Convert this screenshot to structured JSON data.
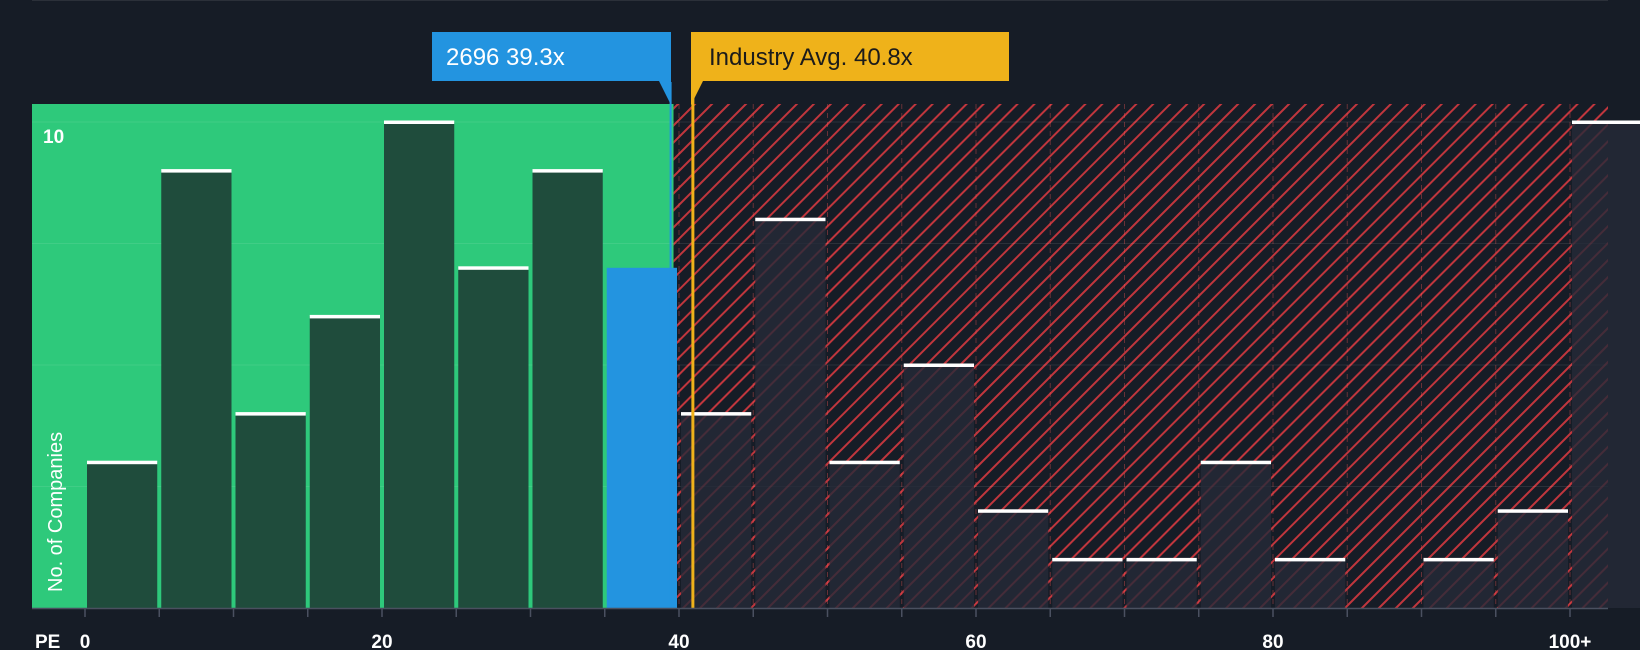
{
  "chart_data": {
    "type": "bar",
    "title": "",
    "xlabel": "PE",
    "ylabel": "No. of Companies",
    "x_ticks": [
      "0",
      "20",
      "40",
      "60",
      "80",
      "100+"
    ],
    "y_ticks": [
      "10"
    ],
    "ylim": [
      0,
      10
    ],
    "bin_width": 5,
    "categories": [
      "0-5",
      "5-10",
      "10-15",
      "15-20",
      "20-25",
      "25-30",
      "30-35",
      "35-40",
      "40-45",
      "45-50",
      "50-55",
      "55-60",
      "60-65",
      "65-70",
      "70-75",
      "75-80",
      "80-85",
      "85-90",
      "90-95",
      "95-100",
      "100+"
    ],
    "values": [
      3,
      9,
      4,
      6,
      10,
      7,
      9,
      7,
      4,
      8,
      3,
      5,
      2,
      1,
      1,
      3,
      1,
      0,
      1,
      2,
      10
    ],
    "highlight_category": "35-40",
    "company": {
      "label": "2696 39.3x",
      "value": 39.3
    },
    "industry": {
      "label": "Industry Avg. 40.8x",
      "value": 40.8
    },
    "colors": {
      "background": "#161c26",
      "undervalued_zone": "#2ec97b",
      "bar_fill": "#1f4c3c",
      "highlight_bar": "#2394e0",
      "overvalued_hatch": "#c0363d",
      "overvalued_bar": "#262a38",
      "industry_line": "#efb21a",
      "bar_cap": "#ffffff",
      "axis_text": "#ffffff"
    }
  }
}
